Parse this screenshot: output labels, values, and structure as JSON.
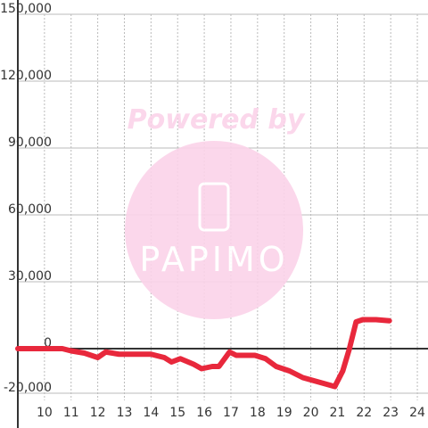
{
  "chart_data": {
    "type": "line",
    "watermark": {
      "title": "Powered by",
      "logo": "PAPIMO"
    },
    "x": [
      9.0,
      10.67,
      11.0,
      11.5,
      12.0,
      12.3,
      12.8,
      14.0,
      14.5,
      14.77,
      15.1,
      15.6,
      15.9,
      16.3,
      16.55,
      16.95,
      17.2,
      17.9,
      18.3,
      18.7,
      19.2,
      19.7,
      20.3,
      20.9,
      21.2,
      21.45,
      21.7,
      21.95,
      22.45,
      22.95
    ],
    "series": [
      {
        "color": "#e8283c",
        "values": [
          0,
          0,
          -1000,
          -2000,
          -4000,
          -1500,
          -2500,
          -2500,
          -4000,
          -6000,
          -4500,
          -7000,
          -9000,
          -8000,
          -8000,
          -1500,
          -3000,
          -3000,
          -4500,
          -8000,
          -10000,
          -13000,
          -15000,
          -17000,
          -10000,
          0,
          12000,
          13000,
          13000,
          12500
        ]
      }
    ],
    "xlim": [
      9,
      24.4
    ],
    "xticks": [
      10,
      11,
      12,
      13,
      14,
      15,
      16,
      17,
      18,
      19,
      20,
      21,
      22,
      23,
      24
    ],
    "ylim": [
      -20000,
      150000
    ],
    "yticks": [
      {
        "value": -20000,
        "label": "-20,000"
      },
      0,
      {
        "value": 30000,
        "label": "30,000"
      },
      {
        "value": 60000,
        "label": "60,000"
      },
      {
        "value": 90000,
        "label": "90,000"
      },
      {
        "value": 120000,
        "label": "120,000"
      },
      {
        "value": 150000,
        "label": "150,000"
      }
    ],
    "grid": true
  }
}
